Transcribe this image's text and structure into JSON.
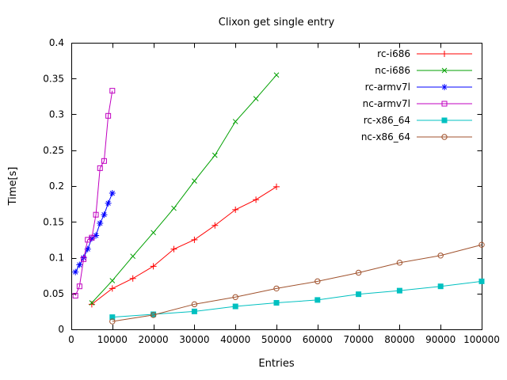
{
  "chart_data": {
    "type": "line",
    "title": "Clixon get single entry",
    "xlabel": "Entries",
    "ylabel": "Time[s]",
    "xlim": [
      0,
      100000
    ],
    "ylim": [
      0,
      0.4
    ],
    "xtick_step": 10000,
    "ytick_step": 0.05,
    "grid": false,
    "legend_position": "top-right-inside",
    "background_color": "#ffffff",
    "axis_color": "#000000",
    "series": [
      {
        "name": "rc-i686",
        "color": "#ff0000",
        "marker": "plus",
        "x": [
          5000,
          10000,
          15000,
          20000,
          25000,
          30000,
          35000,
          40000,
          45000,
          50000
        ],
        "y": [
          0.035,
          0.057,
          0.071,
          0.088,
          0.112,
          0.125,
          0.145,
          0.167,
          0.181,
          0.199
        ]
      },
      {
        "name": "nc-i686",
        "color": "#00a000",
        "marker": "x",
        "x": [
          5000,
          10000,
          15000,
          20000,
          25000,
          30000,
          35000,
          40000,
          45000,
          50000
        ],
        "y": [
          0.037,
          0.068,
          0.102,
          0.135,
          0.169,
          0.207,
          0.243,
          0.29,
          0.322,
          0.355
        ]
      },
      {
        "name": "rc-armv7l",
        "color": "#0000ff",
        "marker": "asterisk",
        "x": [
          1000,
          2000,
          3000,
          4000,
          5000,
          6000,
          7000,
          8000,
          9000,
          10000
        ],
        "y": [
          0.08,
          0.09,
          0.1,
          0.112,
          0.127,
          0.131,
          0.148,
          0.16,
          0.176,
          0.19
        ]
      },
      {
        "name": "nc-armv7l",
        "color": "#c000c0",
        "marker": "open-square",
        "x": [
          1000,
          2000,
          3000,
          4000,
          5000,
          6000,
          7000,
          8000,
          9000,
          10000
        ],
        "y": [
          0.047,
          0.06,
          0.098,
          0.125,
          0.128,
          0.16,
          0.225,
          0.235,
          0.298,
          0.333
        ]
      },
      {
        "name": "rc-x86_64",
        "color": "#00c0c0",
        "marker": "filled-square",
        "x": [
          10000,
          20000,
          30000,
          40000,
          50000,
          60000,
          70000,
          80000,
          90000,
          100000
        ],
        "y": [
          0.017,
          0.021,
          0.025,
          0.032,
          0.037,
          0.041,
          0.049,
          0.054,
          0.06,
          0.067
        ]
      },
      {
        "name": "nc-x86_64",
        "color": "#a0522d",
        "marker": "open-circle",
        "x": [
          10000,
          20000,
          30000,
          40000,
          50000,
          60000,
          70000,
          80000,
          90000,
          100000
        ],
        "y": [
          0.011,
          0.02,
          0.035,
          0.045,
          0.057,
          0.067,
          0.079,
          0.093,
          0.103,
          0.118
        ]
      }
    ]
  }
}
